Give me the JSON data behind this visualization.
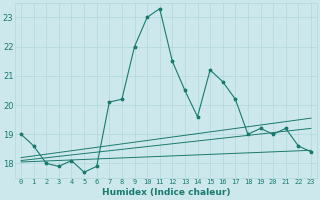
{
  "xlabel": "Humidex (Indice chaleur)",
  "ylabel": "",
  "background_color": "#cce8ec",
  "line_color": "#1a7a6e",
  "grid_color": "#b0d8dc",
  "xlim": [
    -0.5,
    23.5
  ],
  "ylim": [
    17.5,
    23.5
  ],
  "yticks": [
    18,
    19,
    20,
    21,
    22,
    23
  ],
  "xticks": [
    0,
    1,
    2,
    3,
    4,
    5,
    6,
    7,
    8,
    9,
    10,
    11,
    12,
    13,
    14,
    15,
    16,
    17,
    18,
    19,
    20,
    21,
    22,
    23
  ],
  "main_line": {
    "x": [
      0,
      1,
      2,
      3,
      4,
      5,
      6,
      7,
      8,
      9,
      10,
      11,
      12,
      13,
      14,
      15,
      16,
      17,
      18,
      19,
      20,
      21,
      22,
      23
    ],
    "y": [
      19.0,
      18.6,
      18.0,
      17.9,
      18.1,
      17.7,
      17.9,
      20.1,
      20.2,
      22.0,
      23.0,
      23.3,
      21.5,
      20.5,
      19.6,
      21.2,
      20.8,
      20.2,
      19.0,
      19.2,
      19.0,
      19.2,
      18.6,
      18.4
    ]
  },
  "regression_lines": [
    {
      "x": [
        0,
        23
      ],
      "y": [
        18.05,
        18.45
      ]
    },
    {
      "x": [
        0,
        23
      ],
      "y": [
        18.1,
        19.2
      ]
    },
    {
      "x": [
        0,
        23
      ],
      "y": [
        18.2,
        19.55
      ]
    }
  ],
  "xtick_fontsize": 5.0,
  "ytick_fontsize": 6.0,
  "xlabel_fontsize": 6.5
}
